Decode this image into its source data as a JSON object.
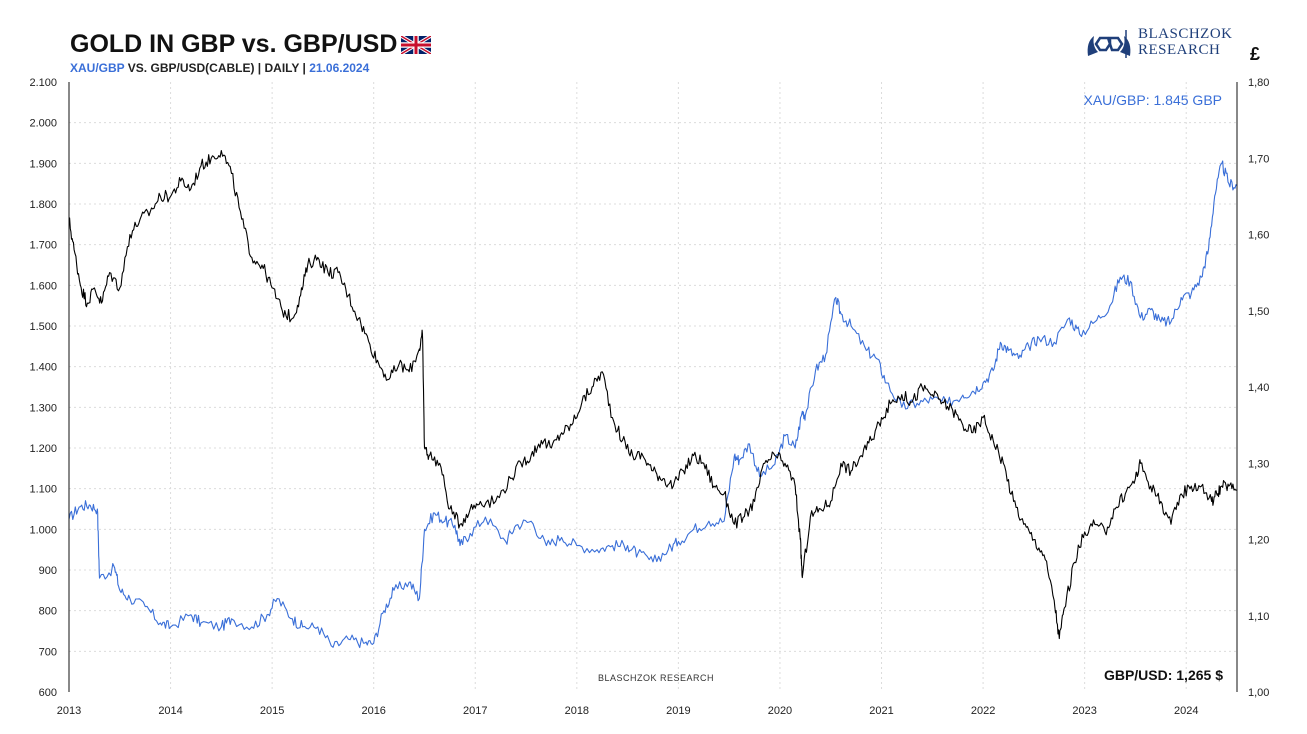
{
  "header": {
    "title": "GOLD IN GBP vs. GBP/USD",
    "subtitle_blue": "XAU/GBP",
    "subtitle_mid": " VS. GBP/USD(CABLE) | DAILY | ",
    "subtitle_date": "21.06.2024",
    "flag_icon": "uk-flag-icon"
  },
  "logo": {
    "line1": "BLASCHZOK",
    "line2": "RESEARCH",
    "icon": "blaschzok-logo-icon"
  },
  "right_axis_unit": "£",
  "watermark": "BLASCHZOK  RESEARCH",
  "labels": {
    "xau": "XAU/GBP: 1.845 GBP",
    "gbp": "GBP/USD: 1,265 $"
  },
  "colors": {
    "xau_gbp": "#3a6fd8",
    "gbp_usd": "#000000"
  },
  "chart_data": {
    "type": "line",
    "title": "GOLD IN GBP vs. GBP/USD",
    "x_ticks": [
      "2013",
      "2014",
      "2015",
      "2016",
      "2017",
      "2018",
      "2019",
      "2020",
      "2021",
      "2022",
      "2023",
      "2024"
    ],
    "xlim": [
      2013.0,
      2024.5
    ],
    "left_axis": {
      "ylim": [
        600,
        2100
      ],
      "tick_labels": [
        "2.100",
        "2.000",
        "1.900",
        "1.800",
        "1.700",
        "1.600",
        "1.500",
        "1.400",
        "1.300",
        "1.200",
        "1.100",
        "1.000",
        "900",
        "800",
        "700",
        "600"
      ]
    },
    "right_axis": {
      "ylim": [
        1.0,
        1.8
      ],
      "tick_labels": [
        "1,80",
        "1,70",
        "1,60",
        "1,50",
        "1,40",
        "1,30",
        "1,20",
        "1,10",
        "1,00"
      ]
    },
    "grid": true,
    "series": [
      {
        "name": "XAU/GBP",
        "axis": "left",
        "x": [
          2013.0,
          2013.1,
          2013.2,
          2013.28,
          2013.3,
          2013.45,
          2013.5,
          2013.6,
          2013.75,
          2013.9,
          2014.0,
          2014.2,
          2014.3,
          2014.5,
          2014.6,
          2014.8,
          2014.95,
          2015.05,
          2015.2,
          2015.3,
          2015.45,
          2015.6,
          2015.75,
          2015.9,
          2016.0,
          2016.1,
          2016.2,
          2016.35,
          2016.45,
          2016.5,
          2016.6,
          2016.7,
          2016.8,
          2016.85,
          2016.95,
          2017.1,
          2017.3,
          2017.4,
          2017.55,
          2017.7,
          2017.85,
          2018.0,
          2018.2,
          2018.35,
          2018.5,
          2018.6,
          2018.75,
          2018.9,
          2019.0,
          2019.15,
          2019.3,
          2019.45,
          2019.55,
          2019.6,
          2019.7,
          2019.8,
          2019.95,
          2020.05,
          2020.15,
          2020.22,
          2020.25,
          2020.35,
          2020.45,
          2020.55,
          2020.6,
          2020.7,
          2020.85,
          2020.95,
          2021.05,
          2021.2,
          2021.35,
          2021.5,
          2021.65,
          2021.8,
          2021.9,
          2022.0,
          2022.1,
          2022.17,
          2022.25,
          2022.35,
          2022.45,
          2022.55,
          2022.7,
          2022.85,
          2022.95,
          2023.1,
          2023.25,
          2023.35,
          2023.45,
          2023.55,
          2023.65,
          2023.75,
          2023.85,
          2023.95,
          2024.05,
          2024.15,
          2024.22,
          2024.28,
          2024.35,
          2024.42,
          2024.5
        ],
        "y": [
          1025,
          1055,
          1060,
          1050,
          880,
          905,
          850,
          830,
          810,
          770,
          760,
          790,
          770,
          760,
          780,
          760,
          790,
          830,
          780,
          760,
          760,
          710,
          730,
          720,
          720,
          800,
          850,
          870,
          830,
          1000,
          1040,
          1020,
          1010,
          960,
          990,
          1030,
          970,
          1010,
          1020,
          960,
          980,
          960,
          950,
          960,
          960,
          940,
          920,
          950,
          970,
          1000,
          1020,
          1020,
          1180,
          1170,
          1210,
          1130,
          1160,
          1230,
          1200,
          1290,
          1280,
          1390,
          1430,
          1570,
          1530,
          1500,
          1440,
          1420,
          1360,
          1300,
          1310,
          1320,
          1310,
          1330,
          1340,
          1360,
          1390,
          1460,
          1440,
          1420,
          1450,
          1470,
          1460,
          1520,
          1480,
          1510,
          1550,
          1620,
          1610,
          1520,
          1540,
          1510,
          1510,
          1570,
          1580,
          1620,
          1690,
          1820,
          1900,
          1850,
          1845
        ]
      },
      {
        "name": "GBP/USD",
        "axis": "right",
        "x": [
          2013.0,
          2013.05,
          2013.12,
          2013.18,
          2013.25,
          2013.32,
          2013.4,
          2013.5,
          2013.6,
          2013.7,
          2013.8,
          2013.9,
          2014.0,
          2014.1,
          2014.2,
          2014.3,
          2014.4,
          2014.5,
          2014.6,
          2014.7,
          2014.8,
          2014.9,
          2015.0,
          2015.1,
          2015.2,
          2015.28,
          2015.35,
          2015.45,
          2015.55,
          2015.65,
          2015.75,
          2015.85,
          2015.95,
          2016.05,
          2016.15,
          2016.25,
          2016.35,
          2016.45,
          2016.48,
          2016.5,
          2016.55,
          2016.65,
          2016.75,
          2016.85,
          2016.95,
          2017.05,
          2017.2,
          2017.35,
          2017.45,
          2017.55,
          2017.65,
          2017.75,
          2017.85,
          2017.95,
          2018.05,
          2018.15,
          2018.25,
          2018.35,
          2018.45,
          2018.55,
          2018.65,
          2018.75,
          2018.85,
          2018.95,
          2019.05,
          2019.15,
          2019.25,
          2019.35,
          2019.45,
          2019.55,
          2019.65,
          2019.75,
          2019.85,
          2019.95,
          2020.05,
          2020.15,
          2020.2,
          2020.22,
          2020.3,
          2020.4,
          2020.5,
          2020.6,
          2020.7,
          2020.8,
          2020.9,
          2021.0,
          2021.1,
          2021.2,
          2021.3,
          2021.4,
          2021.5,
          2021.6,
          2021.7,
          2021.8,
          2021.9,
          2022.0,
          2022.1,
          2022.2,
          2022.3,
          2022.4,
          2022.5,
          2022.6,
          2022.7,
          2022.75,
          2022.8,
          2022.9,
          2023.0,
          2023.1,
          2023.2,
          2023.3,
          2023.4,
          2023.5,
          2023.55,
          2023.65,
          2023.75,
          2023.85,
          2023.95,
          2024.05,
          2024.15,
          2024.25,
          2024.3,
          2024.35,
          2024.42,
          2024.5
        ],
        "y": [
          1.62,
          1.58,
          1.53,
          1.51,
          1.53,
          1.51,
          1.55,
          1.53,
          1.6,
          1.62,
          1.63,
          1.65,
          1.65,
          1.67,
          1.66,
          1.69,
          1.7,
          1.71,
          1.68,
          1.62,
          1.57,
          1.56,
          1.53,
          1.5,
          1.49,
          1.52,
          1.56,
          1.57,
          1.55,
          1.55,
          1.52,
          1.49,
          1.46,
          1.43,
          1.41,
          1.43,
          1.42,
          1.45,
          1.47,
          1.32,
          1.31,
          1.3,
          1.24,
          1.22,
          1.24,
          1.25,
          1.25,
          1.28,
          1.3,
          1.31,
          1.33,
          1.32,
          1.34,
          1.35,
          1.38,
          1.4,
          1.42,
          1.36,
          1.33,
          1.31,
          1.31,
          1.29,
          1.28,
          1.27,
          1.29,
          1.31,
          1.3,
          1.27,
          1.26,
          1.22,
          1.23,
          1.25,
          1.3,
          1.31,
          1.3,
          1.27,
          1.2,
          1.15,
          1.23,
          1.24,
          1.25,
          1.3,
          1.29,
          1.31,
          1.33,
          1.36,
          1.38,
          1.39,
          1.38,
          1.4,
          1.39,
          1.38,
          1.37,
          1.35,
          1.34,
          1.36,
          1.33,
          1.3,
          1.25,
          1.22,
          1.2,
          1.18,
          1.12,
          1.07,
          1.11,
          1.17,
          1.21,
          1.22,
          1.21,
          1.24,
          1.26,
          1.28,
          1.3,
          1.27,
          1.25,
          1.22,
          1.26,
          1.27,
          1.27,
          1.25,
          1.26,
          1.27,
          1.27,
          1.265
        ]
      }
    ]
  }
}
